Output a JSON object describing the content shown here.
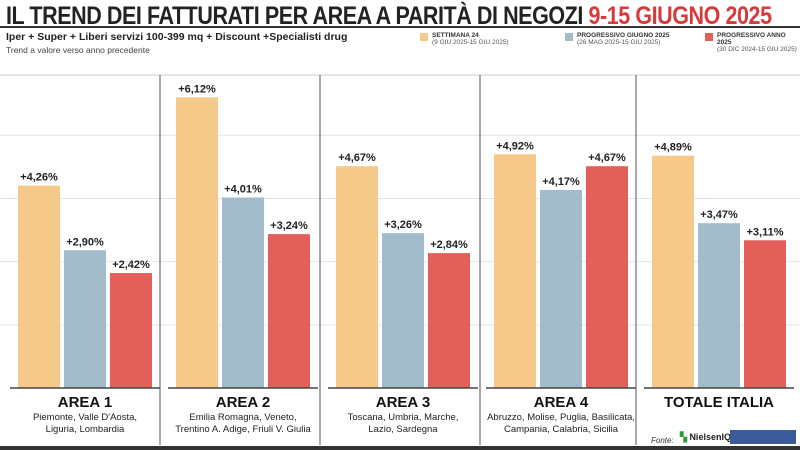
{
  "header": {
    "title_main": "IL TREND DEI FATTURATI PER AREA A PARITÀ DI NEGOZI",
    "title_date": "9-15 GIUGNO 2025",
    "subtitle": "Iper + Super + Liberi servizi 100-399 mq + Discount +Specialisti drug",
    "note": "Trend a valore verso anno precedente"
  },
  "legend": [
    {
      "label": "SETTIMANA 24",
      "range": "(9 GIU 2025-15 GIU 2025)",
      "color": "#f5c98a"
    },
    {
      "label": "PROGRESSIVO GIUGNO 2025",
      "range": "(26 MAG 2025-15 GIU 2025)",
      "color": "#a3bccb"
    },
    {
      "label": "PROGRESSIVO ANNO 2025",
      "range": "(30 DIC 2024-15 GIU 2025)",
      "color": "#e3605a"
    }
  ],
  "chart_data": {
    "type": "bar",
    "categories": [
      "AREA 1",
      "AREA 2",
      "AREA 3",
      "AREA 4",
      "TOTALE ITALIA"
    ],
    "category_regions": [
      "Piemonte, Valle D'Aosta, Liguria, Lombardia",
      "Emilia Romagna, Veneto, Trentino A. Adige, Friuli V. Giulia",
      "Toscana, Umbria, Marche, Lazio, Sardegna",
      "Abruzzo, Molise, Puglia, Basilicata, Campania, Calabria, Sicilia",
      ""
    ],
    "series": [
      {
        "name": "SETTIMANA 24",
        "values": [
          4.26,
          6.12,
          4.67,
          4.92,
          4.89
        ],
        "labels": [
          "+4,26%",
          "+6,12%",
          "+4,67%",
          "+4,92%",
          "+4,89%"
        ]
      },
      {
        "name": "PROGRESSIVO GIUGNO 2025",
        "values": [
          2.9,
          4.01,
          3.26,
          4.17,
          3.47
        ],
        "labels": [
          "+2,90%",
          "+4,01%",
          "+3,26%",
          "+4,17%",
          "+3,47%"
        ]
      },
      {
        "name": "PROGRESSIVO ANNO 2025",
        "values": [
          2.42,
          3.24,
          2.84,
          4.67,
          3.11
        ],
        "labels": [
          "+2,42%",
          "+3,24%",
          "+2,84%",
          "+4,67%",
          "+3,11%"
        ]
      }
    ],
    "ylim": [
      0,
      6.5
    ],
    "grid": true
  },
  "footer": {
    "source_label": "Fonte:",
    "source_name": "NielsenIQ"
  }
}
